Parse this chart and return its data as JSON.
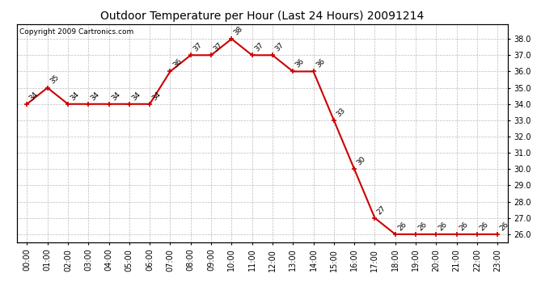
{
  "title": "Outdoor Temperature per Hour (Last 24 Hours) 20091214",
  "copyright": "Copyright 2009 Cartronics.com",
  "hours": [
    "00:00",
    "01:00",
    "02:00",
    "03:00",
    "04:00",
    "05:00",
    "06:00",
    "07:00",
    "08:00",
    "09:00",
    "10:00",
    "11:00",
    "12:00",
    "13:00",
    "14:00",
    "15:00",
    "16:00",
    "17:00",
    "18:00",
    "19:00",
    "20:00",
    "21:00",
    "22:00",
    "23:00"
  ],
  "temps": [
    34,
    35,
    34,
    34,
    34,
    34,
    34,
    36,
    37,
    37,
    38,
    37,
    37,
    36,
    36,
    33,
    30,
    27,
    26,
    26,
    26,
    26,
    26,
    26
  ],
  "ylim_min": 25.5,
  "ylim_max": 38.9,
  "yticks": [
    26.0,
    27.0,
    28.0,
    29.0,
    30.0,
    31.0,
    32.0,
    33.0,
    34.0,
    35.0,
    36.0,
    37.0,
    38.0
  ],
  "line_color": "#cc0000",
  "marker_color": "#cc0000",
  "bg_color": "#ffffff",
  "grid_color": "#bbbbbb",
  "title_fontsize": 10,
  "label_fontsize": 7,
  "annot_fontsize": 6.5,
  "copyright_fontsize": 6.5
}
